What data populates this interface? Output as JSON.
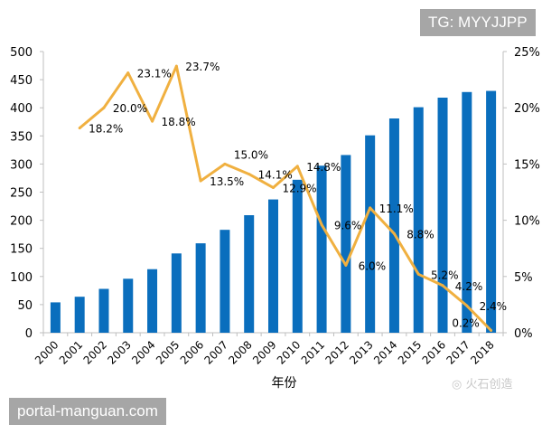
{
  "watermarks": {
    "top_right": "TG: MYYJJPP",
    "bottom_left": "portal-manguan.com",
    "brand": "火石创造"
  },
  "chart_data": {
    "type": "bar+line",
    "title": "",
    "xlabel": "年份",
    "ylabel": "",
    "y2label": "",
    "categories": [
      "2000",
      "2001",
      "2002",
      "2003",
      "2004",
      "2005",
      "2006",
      "2007",
      "2008",
      "2009",
      "2010",
      "2011",
      "2012",
      "2013",
      "2014",
      "2015",
      "2016",
      "2017",
      "2018"
    ],
    "ylim": [
      0,
      500
    ],
    "yticks": [
      0,
      50,
      100,
      150,
      200,
      250,
      300,
      350,
      400,
      450,
      500
    ],
    "y2lim": [
      0,
      25
    ],
    "y2ticks": [
      "0%",
      "5%",
      "10%",
      "15%",
      "20%",
      "25%"
    ],
    "grid": false,
    "legend": "none",
    "colors": {
      "bar": "#0a6ebd",
      "line": "#f0b040"
    },
    "series": [
      {
        "type": "bar",
        "axis": "left",
        "values": [
          54,
          64,
          78,
          96,
          113,
          141,
          159,
          183,
          209,
          237,
          272,
          297,
          316,
          351,
          381,
          401,
          418,
          428,
          430
        ]
      },
      {
        "type": "line",
        "axis": "right",
        "values": [
          null,
          18.2,
          20.0,
          23.1,
          18.8,
          23.7,
          13.5,
          15.0,
          14.1,
          12.9,
          14.8,
          9.6,
          6.0,
          11.1,
          8.8,
          5.2,
          4.2,
          2.4,
          0.2
        ],
        "labels": [
          null,
          "18.2%",
          "20.0%",
          "23.1%",
          "18.8%",
          "23.7%",
          "13.5%",
          "15.0%",
          "14.1%",
          "12.9%",
          "14.8%",
          "9.6%",
          "6.0%",
          "11.1%",
          "8.8%",
          "5.2%",
          "4.2%",
          "2.4%",
          "0.2%"
        ]
      }
    ]
  }
}
